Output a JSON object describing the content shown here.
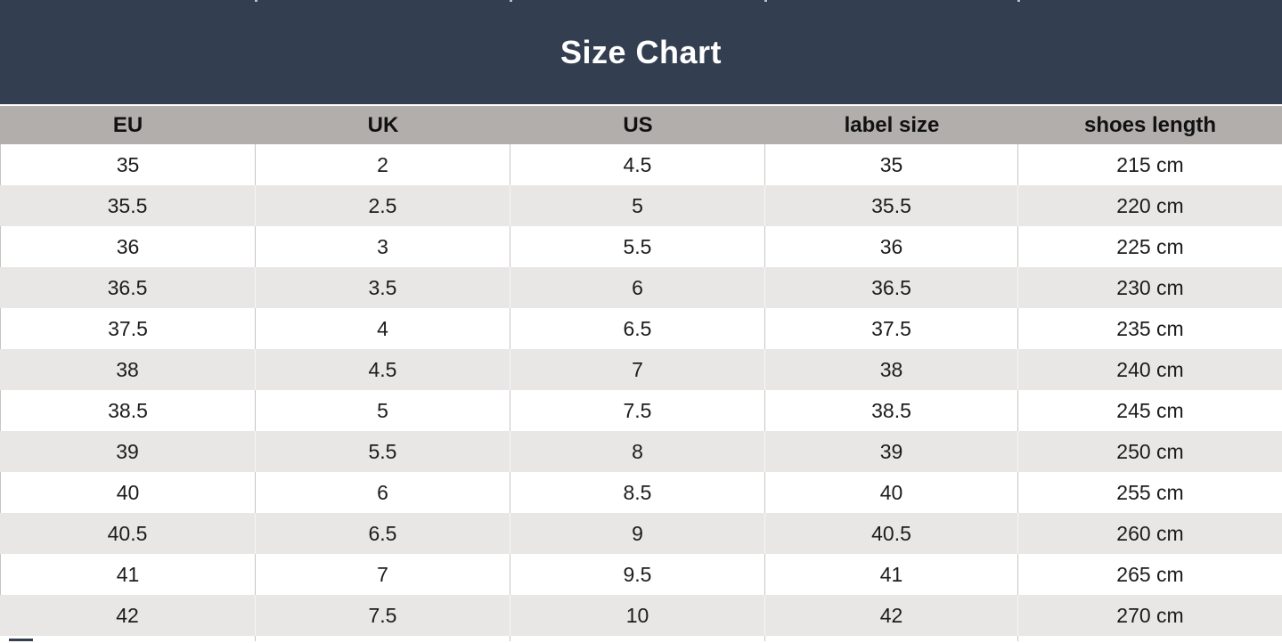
{
  "page": {
    "title": "Size Chart"
  },
  "colors": {
    "header_band_bg": "#333F50",
    "header_band_text": "#FFFFFF",
    "column_header_bg": "#B2AEAC",
    "row_bg": "#FFFFFF",
    "row_alt_bg": "#E9E6E6",
    "divider": "#C8C5C4",
    "text": "#1C1C1C"
  },
  "chart_data": {
    "type": "table",
    "title": "Size Chart",
    "columns": [
      "EU",
      "UK",
      "US",
      "label size",
      "shoes length"
    ],
    "rows": [
      [
        "35",
        "2",
        "4.5",
        "35",
        "215 cm"
      ],
      [
        "35.5",
        "2.5",
        "5",
        "35.5",
        "220 cm"
      ],
      [
        "36",
        "3",
        "5.5",
        "36",
        "225 cm"
      ],
      [
        "36.5",
        "3.5",
        "6",
        "36.5",
        "230 cm"
      ],
      [
        "37.5",
        "4",
        "6.5",
        "37.5",
        "235 cm"
      ],
      [
        "38",
        "4.5",
        "7",
        "38",
        "240 cm"
      ],
      [
        "38.5",
        "5",
        "7.5",
        "38.5",
        "245 cm"
      ],
      [
        "39",
        "5.5",
        "8",
        "39",
        "250 cm"
      ],
      [
        "40",
        "6",
        "8.5",
        "40",
        "255 cm"
      ],
      [
        "40.5",
        "6.5",
        "9",
        "40.5",
        "260 cm"
      ],
      [
        "41",
        "7",
        "9.5",
        "41",
        "265 cm"
      ],
      [
        "42",
        "7.5",
        "10",
        "42",
        "270 cm"
      ]
    ],
    "layout": {
      "striped": true,
      "first_data_row_bg": "white",
      "alt_row_bg": "light-gray"
    }
  }
}
